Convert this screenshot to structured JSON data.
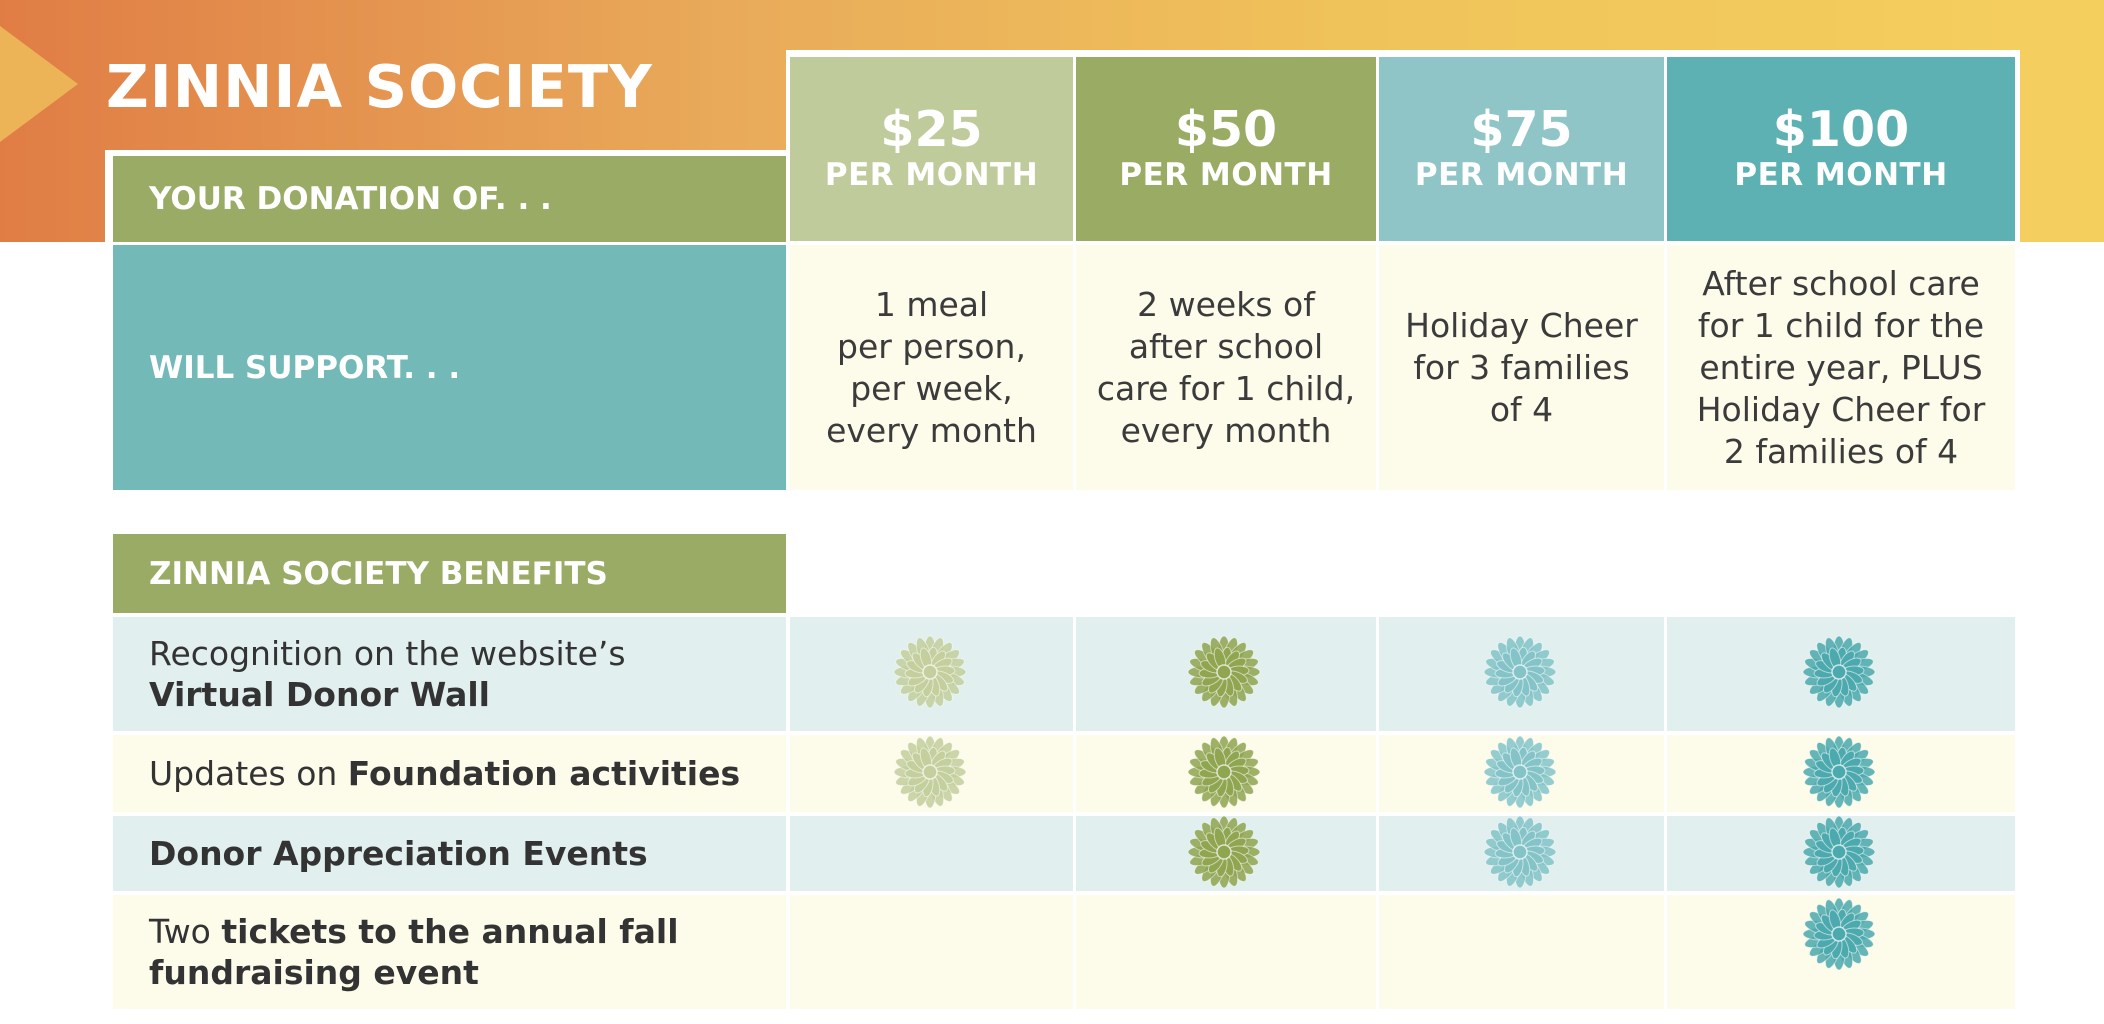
{
  "title": "ZINNIA SOCIETY",
  "labels": {
    "donation": "YOUR DONATION OF. . .",
    "support": "WILL SUPPORT. . .",
    "benefits_header": "ZINNIA SOCIETY BENEFITS"
  },
  "tiers": [
    {
      "amount": "$25",
      "unit": "PER MONTH",
      "color": "#bfcb9b",
      "flower_color": "#c3cf9c",
      "support": [
        "1 meal",
        "per person,",
        "per week,",
        "every month"
      ]
    },
    {
      "amount": "$50",
      "unit": "PER MONTH",
      "color": "#9aab64",
      "flower_color": "#8fa550",
      "support": [
        "2 weeks of",
        "after school",
        "care for 1 child,",
        "every month"
      ]
    },
    {
      "amount": "$75",
      "unit": "PER MONTH",
      "color": "#8fc5c7",
      "flower_color": "#84c4c8",
      "support": [
        "Holiday Cheer",
        "for 3 families",
        "of 4"
      ]
    },
    {
      "amount": "$100",
      "unit": "PER MONTH",
      "color": "#5db1b3",
      "flower_color": "#4ca9ad",
      "support": [
        "After school care",
        "for 1 child for the",
        "entire year, PLUS",
        "Holiday Cheer for",
        "2 families of 4"
      ]
    }
  ],
  "benefits": [
    {
      "segments": [
        {
          "text": "Recognition on the website’s",
          "bold": false
        },
        {
          "text": "Virtual Donor Wall",
          "bold": true,
          "newline": true
        }
      ],
      "tiers_included": [
        true,
        true,
        true,
        true
      ]
    },
    {
      "segments": [
        {
          "text": "Updates on ",
          "bold": false
        },
        {
          "text": "Foundation activities",
          "bold": true
        }
      ],
      "tiers_included": [
        true,
        true,
        true,
        true
      ]
    },
    {
      "segments": [
        {
          "text": "Donor Appreciation Events",
          "bold": true
        }
      ],
      "tiers_included": [
        false,
        true,
        true,
        true
      ]
    },
    {
      "segments": [
        {
          "text": "Two ",
          "bold": false
        },
        {
          "text": "tickets to the annual fall",
          "bold": true
        },
        {
          "text": "fundraising event",
          "bold": true,
          "newline": true
        }
      ],
      "tiers_included": [
        false,
        false,
        false,
        true
      ]
    }
  ],
  "colors": {
    "label_green": "#99ab65",
    "support_teal": "#73b9b8",
    "cream": "#fdfbea",
    "light_teal_row": "#e1efee"
  }
}
